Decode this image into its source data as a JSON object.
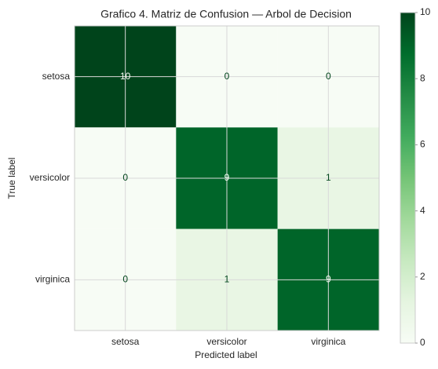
{
  "chart_data": {
    "type": "heatmap",
    "title": "Grafico 4. Matriz de Confusion — Arbol de Decision",
    "x_label": "Predicted label",
    "y_label": "True label",
    "x_categories": [
      "setosa",
      "versicolor",
      "virginica"
    ],
    "y_categories": [
      "setosa",
      "versicolor",
      "virginica"
    ],
    "values": [
      [
        10,
        0,
        0
      ],
      [
        0,
        9,
        1
      ],
      [
        0,
        1,
        9
      ]
    ],
    "colorscale": [
      "#f7fcf5",
      "#e5f5e0",
      "#c7e9c0",
      "#a1d99b",
      "#74c476",
      "#41ab5d",
      "#238b45",
      "#006d2c",
      "#00441b"
    ],
    "zlim": [
      0,
      10
    ],
    "zticks": [
      0,
      2,
      4,
      6,
      8,
      10
    ],
    "grid": true
  }
}
